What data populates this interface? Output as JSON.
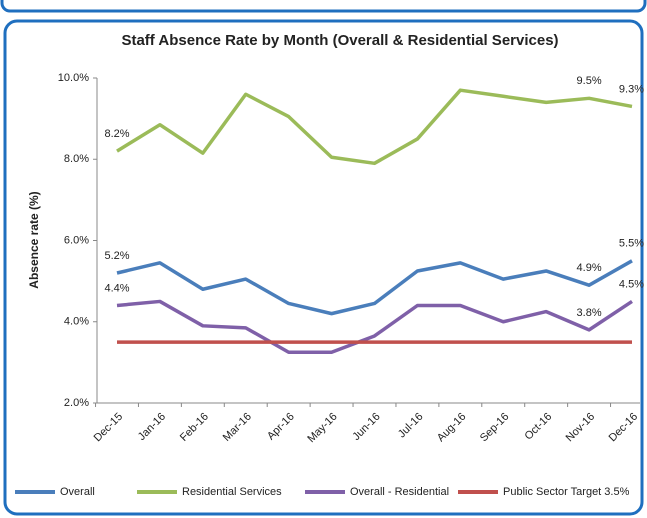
{
  "chart_data": {
    "type": "line",
    "title": "Staff Absence Rate by Month (Overall & Residential Services)",
    "y_label": "Absence rate (%)",
    "categories": [
      "Dec-15",
      "Jan-16",
      "Feb-16",
      "Mar-16",
      "Apr-16",
      "May-16",
      "Jun-16",
      "Jul-16",
      "Aug-16",
      "Sep-16",
      "Oct-16",
      "Nov-16",
      "Dec-16"
    ],
    "ylim": [
      2,
      10
    ],
    "yticks": [
      {
        "value": 2,
        "label": "2.0%"
      },
      {
        "value": 4,
        "label": "4.0%"
      },
      {
        "value": 6,
        "label": "6.0%"
      },
      {
        "value": 8,
        "label": "8.0%"
      },
      {
        "value": 10,
        "label": "10.0%"
      }
    ],
    "legend": "bottom",
    "series": [
      {
        "name": "Overall",
        "color": "#4a7ebb",
        "values": [
          5.2,
          5.45,
          4.8,
          5.05,
          4.45,
          4.2,
          4.45,
          5.25,
          5.45,
          5.05,
          5.25,
          4.9,
          5.5
        ],
        "value_labels": [
          "5.2%",
          null,
          null,
          null,
          null,
          null,
          null,
          null,
          null,
          null,
          null,
          "4.9%",
          "5.5%"
        ]
      },
      {
        "name": "Residential Services",
        "color": "#9bbb59",
        "values": [
          8.2,
          8.85,
          8.15,
          9.6,
          9.05,
          8.05,
          7.9,
          8.5,
          9.7,
          9.55,
          9.4,
          9.5,
          9.3
        ],
        "value_labels": [
          "8.2%",
          null,
          null,
          null,
          null,
          null,
          null,
          null,
          null,
          null,
          null,
          "9.5%",
          "9.3%"
        ]
      },
      {
        "name": "Overall - Residential",
        "color": "#7f60a8",
        "values": [
          4.4,
          4.5,
          3.9,
          3.85,
          3.25,
          3.25,
          3.65,
          4.4,
          4.4,
          4.0,
          4.25,
          3.8,
          4.5
        ],
        "value_labels": [
          "4.4%",
          null,
          null,
          null,
          null,
          null,
          null,
          null,
          null,
          null,
          null,
          "3.8%",
          "4.5%"
        ]
      },
      {
        "name": "Public Sector Target 3.5%",
        "color": "#c0504d",
        "values": [
          3.5,
          3.5,
          3.5,
          3.5,
          3.5,
          3.5,
          3.5,
          3.5,
          3.5,
          3.5,
          3.5,
          3.5,
          3.5
        ]
      }
    ]
  }
}
